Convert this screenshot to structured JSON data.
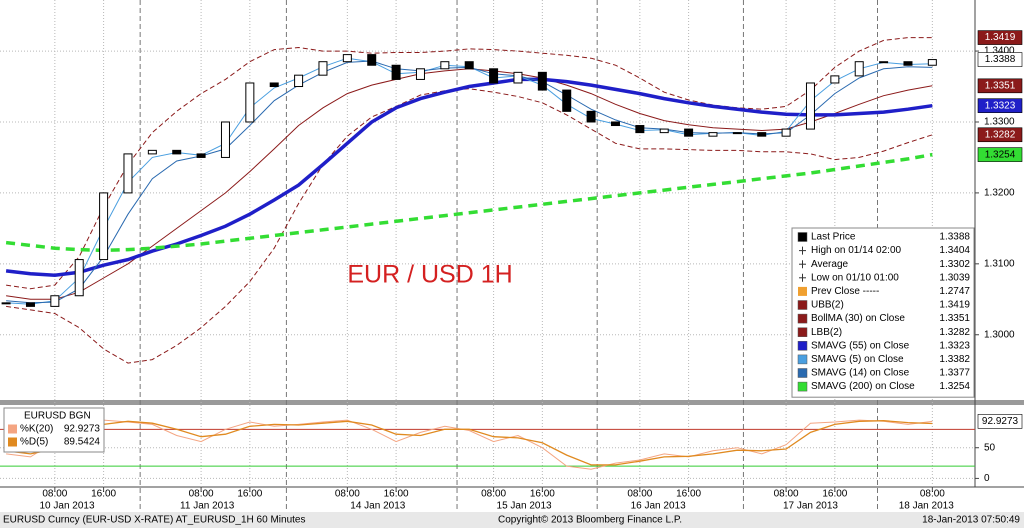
{
  "chart_data": [
    {
      "type": "candlestick",
      "annotation": "EUR / USD 1H",
      "x": [
        0,
        4,
        8,
        12,
        16,
        20,
        24,
        28,
        32,
        36,
        40,
        44,
        48,
        52,
        56,
        60,
        64,
        68,
        72,
        76,
        80,
        84,
        88,
        92,
        96,
        100,
        104,
        108,
        112,
        116,
        120,
        124,
        128,
        132,
        136,
        140,
        144,
        148,
        152
      ],
      "xlim": [
        -1,
        159
      ],
      "xticks": [
        {
          "value": 8,
          "label": "08:00"
        },
        {
          "value": 16,
          "label": "16:00"
        },
        {
          "value": 32,
          "label": "08:00"
        },
        {
          "value": 40,
          "label": "16:00"
        },
        {
          "value": 56,
          "label": "08:00"
        },
        {
          "value": 64,
          "label": "16:00"
        },
        {
          "value": 80,
          "label": "08:00"
        },
        {
          "value": 88,
          "label": "16:00"
        },
        {
          "value": 104,
          "label": "08:00"
        },
        {
          "value": 112,
          "label": "16:00"
        },
        {
          "value": 128,
          "label": "08:00"
        },
        {
          "value": 136,
          "label": "16:00"
        },
        {
          "value": 152,
          "label": "08:00"
        }
      ],
      "date_labels": [
        {
          "value": 10,
          "label": "10 Jan 2013"
        },
        {
          "value": 33,
          "label": "11 Jan 2013"
        },
        {
          "value": 61,
          "label": "14 Jan 2013"
        },
        {
          "value": 85,
          "label": "15 Jan 2013"
        },
        {
          "value": 107,
          "label": "16 Jan 2013"
        },
        {
          "value": 132,
          "label": "17 Jan 2013"
        },
        {
          "value": 151,
          "label": "18 Jan 2013"
        }
      ],
      "day_breaks": [
        22,
        46,
        74,
        97,
        121,
        143
      ],
      "ylim": [
        1.2908,
        1.3472
      ],
      "yticks": [
        {
          "value": 1.3,
          "label": "1.3000"
        },
        {
          "value": 1.31,
          "label": "1.3100"
        },
        {
          "value": 1.32,
          "label": "1.3200"
        },
        {
          "value": 1.33,
          "label": "1.3300"
        },
        {
          "value": 1.34,
          "label": "1.3400"
        }
      ],
      "grid": true,
      "series": [
        {
          "name": "Last Price",
          "kind": "candle",
          "color": "#000000",
          "legend_value": "1.3388",
          "last_label": "1.3388",
          "values": [
            1.3045,
            1.304,
            1.3055,
            1.3106,
            1.32,
            1.3255,
            1.326,
            1.3255,
            1.325,
            1.33,
            1.3355,
            1.335,
            1.3366,
            1.3385,
            1.3395,
            1.338,
            1.336,
            1.3375,
            1.3385,
            1.3375,
            1.3355,
            1.337,
            1.3345,
            1.3315,
            1.33,
            1.3295,
            1.3285,
            1.329,
            1.328,
            1.3285,
            1.3285,
            1.328,
            1.329,
            1.3355,
            1.3365,
            1.3385,
            1.3385,
            1.338,
            1.3388
          ]
        },
        {
          "name": "UBB(2)",
          "kind": "line",
          "color": "#8b1a1a",
          "dashed": true,
          "width": 1,
          "legend_value": "1.3419",
          "last_label": "1.3419",
          "values": [
            1.307,
            1.3065,
            1.307,
            1.311,
            1.318,
            1.324,
            1.3285,
            1.3315,
            1.334,
            1.336,
            1.3385,
            1.3402,
            1.3405,
            1.34,
            1.34,
            1.3397,
            1.3398,
            1.3398,
            1.34,
            1.3403,
            1.3402,
            1.34,
            1.3397,
            1.3394,
            1.339,
            1.338,
            1.3362,
            1.3342,
            1.3331,
            1.3324,
            1.332,
            1.3318,
            1.3322,
            1.3345,
            1.3377,
            1.34,
            1.3415,
            1.3419,
            1.3419
          ]
        },
        {
          "name": "BollMA (30) on Close",
          "kind": "line",
          "color": "#8b1a1a",
          "dashed": false,
          "width": 1,
          "legend_value": "1.3351",
          "last_label": "1.3351",
          "values": [
            1.3055,
            1.305,
            1.305,
            1.306,
            1.308,
            1.31,
            1.3125,
            1.315,
            1.3175,
            1.32,
            1.323,
            1.3262,
            1.3295,
            1.332,
            1.334,
            1.3352,
            1.336,
            1.3368,
            1.3372,
            1.3375,
            1.3372,
            1.3368,
            1.3362,
            1.3352,
            1.334,
            1.3325,
            1.3312,
            1.3302,
            1.3296,
            1.3292,
            1.329,
            1.3288,
            1.329,
            1.33,
            1.3312,
            1.3325,
            1.3337,
            1.3345,
            1.3351
          ]
        },
        {
          "name": "LBB(2)",
          "kind": "line",
          "color": "#8b1a1a",
          "dashed": true,
          "width": 1,
          "legend_value": "1.3282",
          "last_label": "1.3282",
          "values": [
            1.304,
            1.3035,
            1.303,
            1.301,
            1.298,
            1.296,
            1.2965,
            1.2985,
            1.301,
            1.304,
            1.3075,
            1.3122,
            1.3185,
            1.324,
            1.328,
            1.3307,
            1.3322,
            1.3338,
            1.3344,
            1.3347,
            1.3342,
            1.3336,
            1.3327,
            1.331,
            1.329,
            1.327,
            1.3262,
            1.3262,
            1.3261,
            1.326,
            1.326,
            1.3258,
            1.3258,
            1.3255,
            1.3247,
            1.325,
            1.3259,
            1.3271,
            1.3282
          ]
        },
        {
          "name": "SMAVG (55) on Close",
          "kind": "line",
          "color": "#1f1fc8",
          "dashed": false,
          "width": 3.5,
          "legend_value": "1.3323",
          "last_label": "1.3323",
          "values": [
            1.309,
            1.3086,
            1.3084,
            1.3088,
            1.3098,
            1.3106,
            1.3118,
            1.3128,
            1.314,
            1.3153,
            1.317,
            1.319,
            1.3211,
            1.324,
            1.327,
            1.33,
            1.332,
            1.3333,
            1.3342,
            1.335,
            1.3355,
            1.336,
            1.336,
            1.3357,
            1.3352,
            1.3346,
            1.334,
            1.3333,
            1.3327,
            1.3322,
            1.3318,
            1.3314,
            1.3311,
            1.331,
            1.331,
            1.3312,
            1.3314,
            1.3318,
            1.3323
          ]
        },
        {
          "name": "SMAVG (5) on Close",
          "kind": "line",
          "color": "#4a9fe0",
          "dashed": false,
          "width": 1,
          "legend_value": "1.3382",
          "values": [
            1.3045,
            1.3043,
            1.3048,
            1.308,
            1.315,
            1.3215,
            1.325,
            1.3257,
            1.3253,
            1.327,
            1.332,
            1.3348,
            1.3362,
            1.3378,
            1.339,
            1.3385,
            1.3368,
            1.337,
            1.338,
            1.3378,
            1.3362,
            1.3365,
            1.3352,
            1.3325,
            1.3305,
            1.3297,
            1.3288,
            1.3289,
            1.3282,
            1.3284,
            1.3285,
            1.3281,
            1.3287,
            1.333,
            1.3358,
            1.3375,
            1.3384,
            1.3381,
            1.3382
          ]
        },
        {
          "name": "SMAVG (14) on Close",
          "kind": "line",
          "color": "#2a6ab0",
          "dashed": false,
          "width": 1,
          "legend_value": "1.3377",
          "values": [
            1.3048,
            1.3045,
            1.3046,
            1.3065,
            1.311,
            1.317,
            1.322,
            1.3245,
            1.3252,
            1.3262,
            1.3295,
            1.333,
            1.3352,
            1.337,
            1.3384,
            1.3386,
            1.3375,
            1.3372,
            1.3376,
            1.3377,
            1.3368,
            1.3365,
            1.3357,
            1.3338,
            1.3318,
            1.3303,
            1.3292,
            1.329,
            1.3285,
            1.3284,
            1.3285,
            1.3283,
            1.3285,
            1.331,
            1.334,
            1.3362,
            1.3375,
            1.3378,
            1.3377
          ]
        },
        {
          "name": "SMAVG (200) on Close",
          "kind": "line",
          "color": "#33dd33",
          "dashed": true,
          "width": 3.5,
          "legend_value": "1.3254",
          "last_label": "1.3254",
          "values": [
            1.313,
            1.3126,
            1.3122,
            1.312,
            1.3119,
            1.312,
            1.3122,
            1.3125,
            1.3128,
            1.3132,
            1.3136,
            1.314,
            1.3144,
            1.3148,
            1.3152,
            1.3156,
            1.316,
            1.3164,
            1.3168,
            1.3172,
            1.3176,
            1.318,
            1.3184,
            1.3188,
            1.3192,
            1.3196,
            1.32,
            1.3204,
            1.3208,
            1.3212,
            1.3216,
            1.322,
            1.3224,
            1.3228,
            1.3233,
            1.3238,
            1.3243,
            1.3248,
            1.3254
          ]
        }
      ],
      "stats": [
        {
          "name": "High on 01/14 02:00",
          "value": "1.3404"
        },
        {
          "name": "Average",
          "value": "1.3302"
        },
        {
          "name": "Low on 01/10 01:00",
          "value": "1.3039"
        },
        {
          "name": "Prev Close -----",
          "value": "1.2747",
          "color": "#f0a030"
        }
      ]
    },
    {
      "type": "line",
      "title": "EURUSD BGN",
      "x": [
        0,
        4,
        8,
        12,
        16,
        20,
        24,
        28,
        32,
        36,
        40,
        44,
        48,
        52,
        56,
        60,
        64,
        68,
        72,
        76,
        80,
        84,
        88,
        92,
        96,
        100,
        104,
        108,
        112,
        116,
        120,
        124,
        128,
        132,
        136,
        140,
        144,
        148,
        152
      ],
      "xlim": [
        -1,
        159
      ],
      "ylim": [
        -14,
        118
      ],
      "yticks": [
        0,
        50
      ],
      "levels": [
        80,
        20
      ],
      "level_colors": [
        "#c0392b",
        "#33cc33"
      ],
      "series": [
        {
          "name": "%K(20)",
          "color": "#f4a582",
          "legend_value": "92.9273",
          "last_label": "92.9273",
          "values": [
            40,
            35,
            60,
            85,
            95,
            92,
            88,
            70,
            60,
            80,
            92,
            85,
            88,
            92,
            95,
            80,
            60,
            75,
            85,
            78,
            60,
            70,
            50,
            20,
            15,
            25,
            30,
            40,
            35,
            45,
            50,
            40,
            55,
            90,
            92,
            95,
            93,
            88,
            92.9273
          ]
        },
        {
          "name": "%D(5)",
          "color": "#e08a20",
          "legend_value": "89.5424",
          "values": [
            45,
            40,
            48,
            70,
            88,
            93,
            90,
            80,
            68,
            72,
            85,
            88,
            87,
            90,
            93,
            87,
            72,
            70,
            80,
            80,
            68,
            66,
            58,
            38,
            22,
            22,
            28,
            35,
            36,
            40,
            46,
            45,
            48,
            75,
            88,
            93,
            94,
            91,
            89.5424
          ]
        }
      ]
    }
  ],
  "footer": {
    "left": "EURUSD Curncy (EUR-USD X-RATE) AT_EURUSD_1H  60 Minutes",
    "center": "Copyright© 2013 Bloomberg Finance L.P.",
    "right": "18-Jan-2013 07:50:49"
  }
}
